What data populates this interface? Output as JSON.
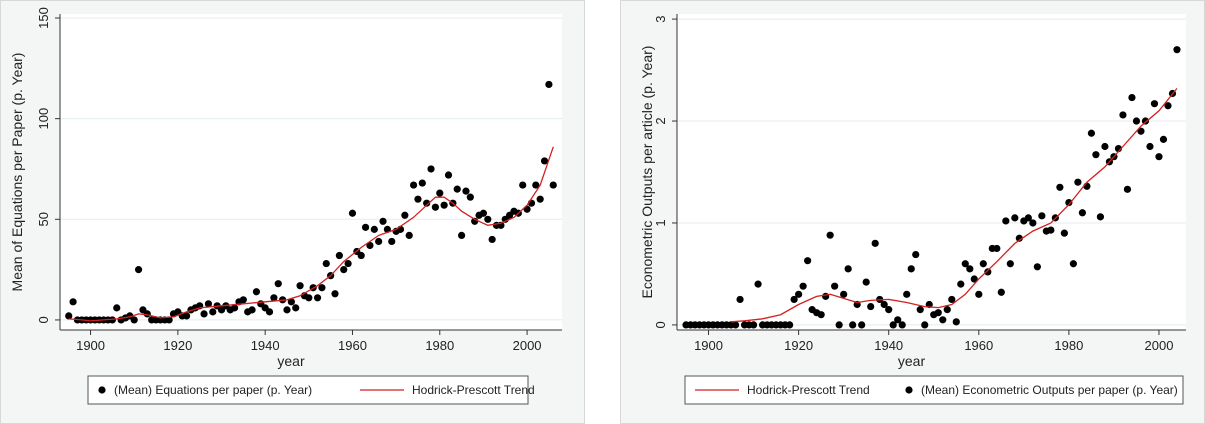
{
  "chart_data": [
    {
      "type": "scatter",
      "xlabel": "year",
      "ylabel": "Mean of Equations per Paper (p. Year)",
      "xlim": [
        1893,
        2008
      ],
      "ylim": [
        -5,
        152
      ],
      "xticks": [
        1900,
        1920,
        1940,
        1960,
        1980,
        2000
      ],
      "yticks": [
        0,
        50,
        100,
        150
      ],
      "grid": "horizontal",
      "legend_position": "bottom",
      "legend_order": [
        "points",
        "trend"
      ],
      "series": [
        {
          "name": "(Mean) Equations per paper (p. Year)",
          "kind": "scatter",
          "color": "#000000",
          "x": [
            1895,
            1896,
            1897,
            1898,
            1899,
            1900,
            1901,
            1902,
            1903,
            1904,
            1905,
            1906,
            1907,
            1908,
            1909,
            1910,
            1911,
            1912,
            1913,
            1914,
            1915,
            1916,
            1917,
            1918,
            1919,
            1920,
            1921,
            1922,
            1923,
            1924,
            1925,
            1926,
            1927,
            1928,
            1929,
            1930,
            1931,
            1932,
            1933,
            1934,
            1935,
            1936,
            1937,
            1938,
            1939,
            1940,
            1941,
            1942,
            1943,
            1944,
            1945,
            1946,
            1947,
            1948,
            1949,
            1950,
            1951,
            1952,
            1953,
            1954,
            1955,
            1956,
            1957,
            1958,
            1959,
            1960,
            1961,
            1962,
            1963,
            1964,
            1965,
            1966,
            1967,
            1968,
            1969,
            1970,
            1971,
            1972,
            1973,
            1974,
            1975,
            1976,
            1977,
            1978,
            1979,
            1980,
            1981,
            1982,
            1983,
            1984,
            1985,
            1986,
            1987,
            1988,
            1989,
            1990,
            1991,
            1992,
            1993,
            1994,
            1995,
            1996,
            1997,
            1998,
            1999,
            2000,
            2001,
            2002,
            2003,
            2004,
            2005,
            2006
          ],
          "y": [
            2,
            9,
            0,
            0,
            0,
            0,
            0,
            0,
            0,
            0,
            0,
            6,
            0,
            1,
            2,
            0,
            25,
            5,
            3,
            0,
            0,
            0,
            0,
            0,
            3,
            4,
            2,
            2,
            5,
            6,
            7,
            3,
            8,
            4,
            7,
            5,
            7,
            5,
            6,
            9,
            10,
            4,
            5,
            14,
            8,
            6,
            4,
            11,
            18,
            10,
            5,
            9,
            6,
            17,
            12,
            11,
            16,
            11,
            16,
            28,
            22,
            13,
            32,
            25,
            28,
            53,
            34,
            32,
            46,
            37,
            45,
            39,
            49,
            45,
            39,
            44,
            45,
            52,
            42,
            67,
            60,
            68,
            58,
            75,
            56,
            63,
            57,
            72,
            58,
            65,
            42,
            64,
            61,
            49,
            52,
            53,
            50,
            40,
            47,
            47,
            50,
            52,
            54,
            53,
            67,
            55,
            58,
            67,
            60,
            79,
            117,
            67
          ]
        },
        {
          "name": "Hodrick-Prescott Trend",
          "kind": "line",
          "color": "#d42020",
          "x": [
            1895,
            1898,
            1900,
            1903,
            1906,
            1909,
            1911,
            1913,
            1916,
            1919,
            1922,
            1925,
            1930,
            1935,
            1940,
            1945,
            1948,
            1952,
            1955,
            1958,
            1962,
            1966,
            1970,
            1974,
            1977,
            1979,
            1981,
            1983,
            1985,
            1988,
            1991,
            1994,
            1997,
            2000,
            2003,
            2006
          ],
          "y": [
            0.5,
            0,
            -0.5,
            0,
            0.5,
            1.5,
            3,
            2.5,
            1,
            1.5,
            4,
            6,
            7,
            8,
            9,
            10,
            12,
            17,
            22,
            29,
            36,
            42,
            45,
            51,
            57,
            61,
            61,
            58,
            54,
            50,
            47,
            48,
            51,
            57,
            67,
            86
          ]
        }
      ]
    },
    {
      "type": "scatter",
      "xlabel": "year",
      "ylabel": "Econometric Outputs per article (p. Year)",
      "xlim": [
        1893,
        2006
      ],
      "ylim": [
        -0.05,
        3.05
      ],
      "xticks": [
        1900,
        1920,
        1940,
        1960,
        1980,
        2000
      ],
      "yticks": [
        0,
        1,
        2,
        3
      ],
      "grid": "horizontal",
      "legend_position": "bottom",
      "legend_order": [
        "trend",
        "points"
      ],
      "series": [
        {
          "name": "(Mean) Econometric Outputs per paper (p. Year)",
          "kind": "scatter",
          "color": "#000000",
          "x": [
            1895,
            1896,
            1897,
            1898,
            1899,
            1900,
            1901,
            1902,
            1903,
            1904,
            1905,
            1906,
            1907,
            1908,
            1909,
            1910,
            1911,
            1912,
            1913,
            1914,
            1915,
            1916,
            1917,
            1918,
            1919,
            1920,
            1921,
            1922,
            1923,
            1924,
            1925,
            1926,
            1927,
            1928,
            1929,
            1930,
            1931,
            1932,
            1933,
            1934,
            1935,
            1936,
            1937,
            1938,
            1939,
            1940,
            1941,
            1942,
            1943,
            1944,
            1945,
            1946,
            1947,
            1948,
            1949,
            1950,
            1951,
            1952,
            1953,
            1954,
            1955,
            1956,
            1957,
            1958,
            1959,
            1960,
            1961,
            1962,
            1963,
            1964,
            1965,
            1966,
            1967,
            1968,
            1969,
            1970,
            1971,
            1972,
            1973,
            1974,
            1975,
            1976,
            1977,
            1978,
            1979,
            1980,
            1981,
            1982,
            1983,
            1984,
            1985,
            1986,
            1987,
            1988,
            1989,
            1990,
            1991,
            1992,
            1993,
            1994,
            1995,
            1996,
            1997,
            1998,
            1999,
            2000,
            2001,
            2002,
            2003,
            2004
          ],
          "y": [
            0,
            0,
            0,
            0,
            0,
            0,
            0,
            0,
            0,
            0,
            0,
            0,
            0.25,
            0,
            0,
            0,
            0.4,
            0,
            0,
            0,
            0,
            0,
            0,
            0,
            0.25,
            0.3,
            0.38,
            0.63,
            0.15,
            0.12,
            0.1,
            0.28,
            0.88,
            0.38,
            0,
            0.3,
            0.55,
            0,
            0.2,
            0,
            0.42,
            0.18,
            0.8,
            0.25,
            0.2,
            0.15,
            0,
            0.05,
            0,
            0.3,
            0.55,
            0.69,
            0.15,
            0,
            0.2,
            0.1,
            0.12,
            0.05,
            0.15,
            0.25,
            0.03,
            0.4,
            0.6,
            0.55,
            0.45,
            0.3,
            0.6,
            0.52,
            0.75,
            0.75,
            0.32,
            1.02,
            0.6,
            1.05,
            0.85,
            1.02,
            1.05,
            1.0,
            0.57,
            1.07,
            0.92,
            0.93,
            1.05,
            1.35,
            0.9,
            1.2,
            0.6,
            1.4,
            1.1,
            1.36,
            1.88,
            1.67,
            1.06,
            1.75,
            1.6,
            1.65,
            1.73,
            2.06,
            1.33,
            2.23,
            2.0,
            1.9,
            2.0,
            1.75,
            2.17,
            1.65,
            1.82,
            2.15,
            2.27,
            2.7
          ]
        },
        {
          "name": "Hodrick-Prescott Trend",
          "kind": "line",
          "color": "#d42020",
          "x": [
            1905,
            1908,
            1912,
            1916,
            1920,
            1924,
            1927,
            1930,
            1933,
            1936,
            1940,
            1944,
            1948,
            1951,
            1954,
            1957,
            1960,
            1964,
            1968,
            1972,
            1976,
            1980,
            1984,
            1988,
            1992,
            1996,
            2000,
            2004
          ],
          "y": [
            0.03,
            0.04,
            0.06,
            0.1,
            0.2,
            0.28,
            0.3,
            0.26,
            0.22,
            0.24,
            0.25,
            0.22,
            0.18,
            0.17,
            0.2,
            0.3,
            0.45,
            0.62,
            0.8,
            0.92,
            1.0,
            1.18,
            1.4,
            1.55,
            1.75,
            1.95,
            2.1,
            2.32
          ]
        }
      ]
    }
  ]
}
